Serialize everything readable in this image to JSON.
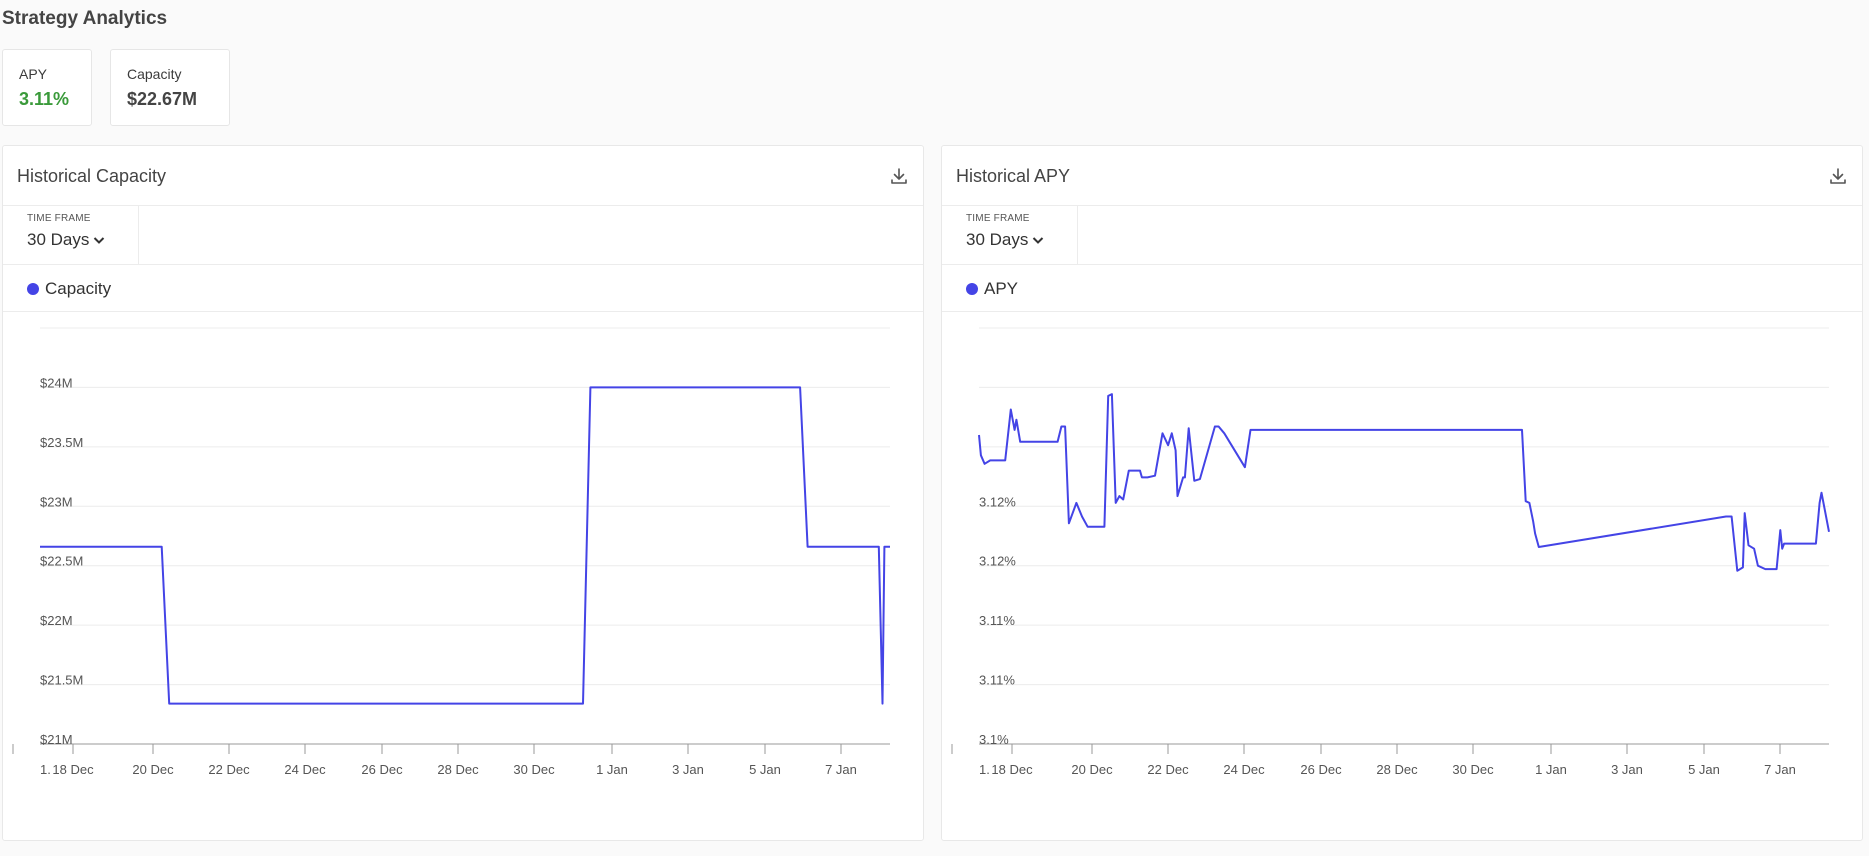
{
  "page": {
    "title": "Strategy Analytics"
  },
  "stats": [
    {
      "label": "APY",
      "value": "3.11%",
      "color": "#3a9a3a"
    },
    {
      "label": "Capacity",
      "value": "$22.67M",
      "color": "#444444"
    }
  ],
  "panels": [
    {
      "title": "Historical Capacity",
      "timeframe_label": "TIME FRAME",
      "timeframe_value": "30 Days",
      "legend": "Capacity",
      "download_icon": "download-icon"
    },
    {
      "title": "Historical APY",
      "timeframe_label": "TIME FRAME",
      "timeframe_value": "30 Days",
      "legend": "APY",
      "download_icon": "download-icon"
    }
  ],
  "colors": {
    "series": "#4444e6",
    "grid": "#ececec",
    "axis": "#999999"
  },
  "chart_data": [
    {
      "type": "line",
      "title": "Historical Capacity",
      "series": [
        {
          "name": "Capacity",
          "color": "#4444e6"
        }
      ],
      "x_ticks": [
        "1.",
        "18 Dec",
        "20 Dec",
        "22 Dec",
        "24 Dec",
        "26 Dec",
        "28 Dec",
        "30 Dec",
        "1 Jan",
        "3 Jan",
        "5 Jan",
        "7 Jan"
      ],
      "y_ticks": [
        "$21M",
        "$21.5M",
        "$22M",
        "$22.5M",
        "$23M",
        "$23.5M",
        "$24M"
      ],
      "ylim": [
        21,
        24.5
      ],
      "xlim": [
        16.6,
        39.3
      ],
      "x": [
        16.6,
        19.85,
        20.05,
        31.1,
        31.3,
        36.9,
        37.1,
        39.0,
        39.1,
        39.15,
        39.3
      ],
      "y": [
        22.66,
        22.66,
        21.34,
        21.34,
        24.0,
        24.0,
        22.66,
        22.66,
        21.34,
        22.66,
        22.66
      ],
      "grid": true,
      "legend_position": "top-left"
    },
    {
      "type": "line",
      "title": "Historical APY",
      "series": [
        {
          "name": "APY",
          "color": "#4444e6"
        }
      ],
      "x_ticks": [
        "1.",
        "18 Dec",
        "20 Dec",
        "22 Dec",
        "24 Dec",
        "26 Dec",
        "28 Dec",
        "30 Dec",
        "1 Jan",
        "3 Jan",
        "5 Jan",
        "7 Jan"
      ],
      "y_ticks": [
        "3.1%",
        "3.11%",
        "3.11%",
        "3.12%",
        "3.12%"
      ],
      "ylim": [
        3.1,
        3.1245
      ],
      "xlim": [
        16.6,
        39.3
      ],
      "x": [
        16.6,
        16.65,
        16.75,
        16.9,
        17.3,
        17.45,
        17.55,
        17.6,
        17.7,
        18.0,
        18.7,
        18.8,
        18.85,
        18.9,
        19.0,
        19.2,
        19.35,
        19.5,
        19.6,
        19.9,
        19.95,
        20.05,
        20.15,
        20.25,
        20.35,
        20.45,
        20.6,
        20.9,
        20.95,
        21.1,
        21.3,
        21.5,
        21.65,
        21.75,
        21.85,
        21.9,
        22.05,
        22.1,
        22.2,
        22.35,
        22.5,
        22.9,
        23.0,
        23.15,
        23.7,
        23.85,
        31.1,
        31.2,
        31.3,
        31.4,
        31.45,
        31.55,
        36.55,
        36.7,
        36.85,
        37.0,
        37.05,
        37.15,
        37.3,
        37.4,
        37.6,
        37.9,
        38.0,
        38.05,
        38.1,
        38.95,
        39.05,
        39.1,
        39.3
      ],
      "y": [
        3.1182,
        3.117,
        3.1165,
        3.1167,
        3.1167,
        3.1197,
        3.1185,
        3.1191,
        3.1178,
        3.1178,
        3.1178,
        3.1187,
        3.1187,
        3.1187,
        3.113,
        3.1142,
        3.1134,
        3.1128,
        3.1128,
        3.1128,
        3.1128,
        3.1205,
        3.1206,
        3.1142,
        3.1146,
        3.1144,
        3.1161,
        3.1161,
        3.1157,
        3.1157,
        3.1158,
        3.1183,
        3.1176,
        3.1183,
        3.1173,
        3.1146,
        3.1157,
        3.1157,
        3.1186,
        3.1155,
        3.1156,
        3.1187,
        3.1187,
        3.1183,
        3.1163,
        3.1185,
        3.1185,
        3.1143,
        3.1142,
        3.1131,
        3.1124,
        3.1116,
        3.1134,
        3.1134,
        3.1102,
        3.1104,
        3.1136,
        3.1117,
        3.1115,
        3.1105,
        3.1103,
        3.1103,
        3.1126,
        3.1115,
        3.1118,
        3.1118,
        3.1142,
        3.1148,
        3.1125
      ],
      "grid": true,
      "legend_position": "top-left"
    }
  ]
}
